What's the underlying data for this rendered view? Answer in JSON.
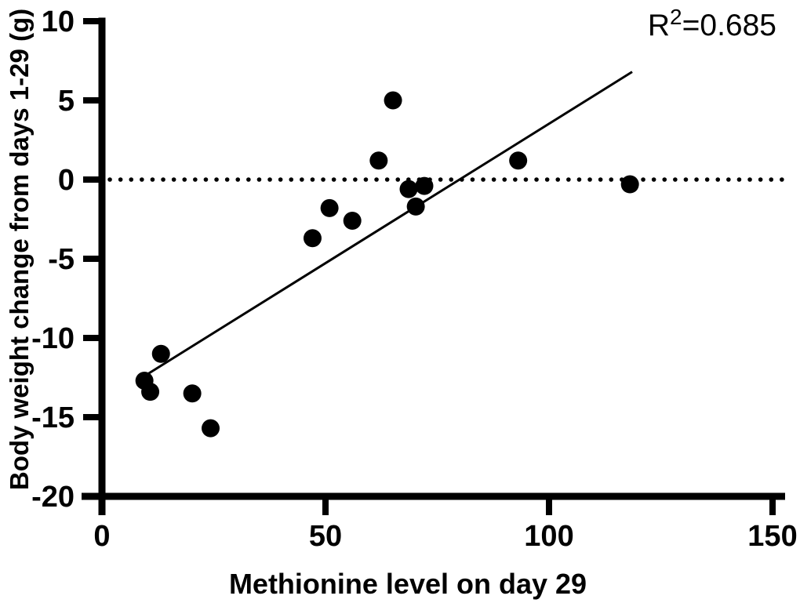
{
  "chart_data": {
    "type": "scatter",
    "title": "",
    "xlabel": "Methionine level on day 29",
    "ylabel": "Body weight change from days 1-29 (g)",
    "annotation": {
      "base": "R",
      "sup": "2",
      "rest": "=0.685"
    },
    "xlim": [
      0,
      150
    ],
    "ylim": [
      -20,
      10
    ],
    "x_ticks": [
      0,
      50,
      100,
      150
    ],
    "y_ticks": [
      10,
      5,
      0,
      -5,
      -10,
      -15,
      -20
    ],
    "points": [
      {
        "x": 9.5,
        "y": -12.7
      },
      {
        "x": 10.8,
        "y": -13.4
      },
      {
        "x": 13.2,
        "y": -11.0
      },
      {
        "x": 20.2,
        "y": -13.5
      },
      {
        "x": 24.3,
        "y": -15.7
      },
      {
        "x": 47.1,
        "y": -3.7
      },
      {
        "x": 50.9,
        "y": -1.8
      },
      {
        "x": 56.0,
        "y": -2.6
      },
      {
        "x": 61.9,
        "y": 1.2
      },
      {
        "x": 65.1,
        "y": 5.0
      },
      {
        "x": 68.6,
        "y": -0.6
      },
      {
        "x": 72.1,
        "y": -0.4
      },
      {
        "x": 70.2,
        "y": -1.7
      },
      {
        "x": 93.1,
        "y": 1.2
      },
      {
        "x": 118.1,
        "y": -0.3
      }
    ],
    "trendline": {
      "x1": 8.4,
      "y1": -12.6,
      "x2": 118.6,
      "y2": 6.8,
      "r_squared": 0.685
    },
    "zero_line": {
      "y": 0,
      "style": "dotted"
    },
    "grid": false,
    "legend": null,
    "colors": {
      "marker": "#000000",
      "line": "#000000",
      "axis": "#000000",
      "background": "#ffffff"
    }
  }
}
